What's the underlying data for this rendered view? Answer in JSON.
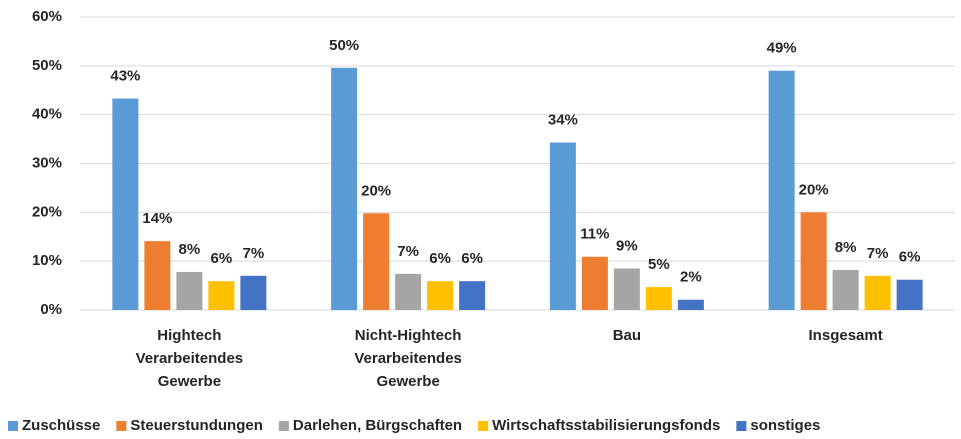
{
  "chart_data": {
    "type": "bar",
    "categories": [
      "Hightech Verarbeitendes Gewerbe",
      "Nicht-Hightech Verarbeitendes Gewerbe",
      "Bau",
      "Insgesamt"
    ],
    "series": [
      {
        "name": "Zuschüsse",
        "color": "#5b9bd5",
        "values": [
          43.3,
          49.6,
          34.3,
          49.0
        ],
        "value_labels": [
          "43%",
          "50%",
          "34%",
          "49%"
        ]
      },
      {
        "name": "Steuerstundungen",
        "color": "#ed7d31",
        "values": [
          14.1,
          19.8,
          10.9,
          20.0
        ],
        "value_labels": [
          "14%",
          "20%",
          "11%",
          "20%"
        ]
      },
      {
        "name": "Darlehen, Bürgschaften",
        "color": "#a5a5a5",
        "values": [
          7.8,
          7.4,
          8.5,
          8.2
        ],
        "value_labels": [
          "8%",
          "7%",
          "9%",
          "8%"
        ]
      },
      {
        "name": "Wirtschaftsstabilisierungsfonds",
        "color": "#ffc000",
        "values": [
          5.9,
          5.9,
          4.7,
          7.0
        ],
        "value_labels": [
          "6%",
          "6%",
          "5%",
          "7%"
        ]
      },
      {
        "name": "sonstiges",
        "color": "#4472c4",
        "values": [
          7.0,
          5.9,
          2.1,
          6.2
        ],
        "value_labels": [
          "7%",
          "6%",
          "2%",
          "6%"
        ]
      }
    ],
    "ylim": [
      0,
      60
    ],
    "yticks": [
      {
        "value": 0,
        "label": "0%"
      },
      {
        "value": 10,
        "label": "10%"
      },
      {
        "value": 20,
        "label": "20%"
      },
      {
        "value": 30,
        "label": "30%"
      },
      {
        "value": 40,
        "label": "40%"
      },
      {
        "value": 50,
        "label": "50%"
      },
      {
        "value": 60,
        "label": "60%"
      }
    ],
    "grid": true,
    "legend": "bottom"
  }
}
